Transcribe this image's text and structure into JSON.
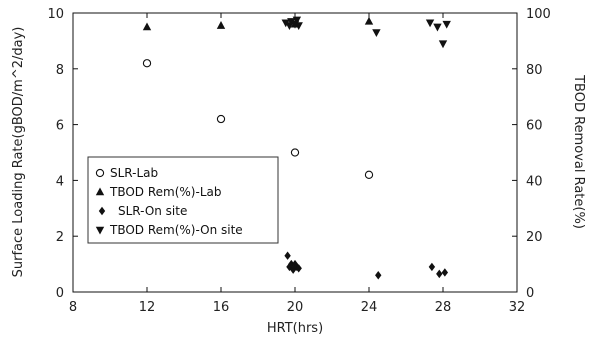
{
  "chart_data": {
    "type": "scatter",
    "xlabel": "HRT(hrs)",
    "ylabel": "Surface Loading Rate(gBOD/m^2/day)",
    "y2label": "TBOD Removal Rate(%)",
    "xlim": [
      8,
      32
    ],
    "ylim": [
      0,
      10
    ],
    "y2lim": [
      0,
      100
    ],
    "xticks": [
      "8",
      "12",
      "16",
      "20",
      "24",
      "28",
      "32"
    ],
    "yticks": [
      "0",
      "2",
      "4",
      "6",
      "8",
      "10"
    ],
    "y2ticks": [
      "0",
      "20",
      "40",
      "60",
      "80",
      "100"
    ],
    "grid": false,
    "legend_position": "middle-left",
    "series": [
      {
        "name": "SLR-Lab",
        "marker": "circle-open",
        "axis": "left",
        "points": [
          [
            12,
            8.2
          ],
          [
            16,
            6.2
          ],
          [
            20,
            5.0
          ],
          [
            24,
            4.2
          ]
        ]
      },
      {
        "name": "TBOD Rem(%)-Lab",
        "marker": "triangle-up",
        "axis": "right",
        "points": [
          [
            12,
            95
          ],
          [
            16,
            95.5
          ],
          [
            20,
            96
          ],
          [
            24,
            97
          ]
        ]
      },
      {
        "name": "SLR-On site",
        "marker": "diamond",
        "axis": "left",
        "points": [
          [
            19.6,
            1.3
          ],
          [
            19.7,
            0.9
          ],
          [
            19.8,
            1.0
          ],
          [
            19.9,
            0.8
          ],
          [
            20.0,
            1.0
          ],
          [
            20.1,
            0.9
          ],
          [
            20.2,
            0.85
          ],
          [
            24.5,
            0.6
          ],
          [
            27.4,
            0.9
          ],
          [
            27.8,
            0.65
          ],
          [
            28.1,
            0.7
          ]
        ]
      },
      {
        "name": "TBOD Rem(%)-On site",
        "marker": "triangle-down",
        "axis": "right",
        "points": [
          [
            19.5,
            96.5
          ],
          [
            19.7,
            95.5
          ],
          [
            19.8,
            97
          ],
          [
            20.0,
            96
          ],
          [
            20.1,
            97.5
          ],
          [
            20.2,
            95.5
          ],
          [
            24.4,
            93
          ],
          [
            27.3,
            96.5
          ],
          [
            27.7,
            95
          ],
          [
            28.0,
            89
          ],
          [
            28.2,
            96
          ]
        ]
      }
    ]
  },
  "colors": {
    "axis": "#111111",
    "marker": "#111111",
    "background": "#ffffff"
  }
}
